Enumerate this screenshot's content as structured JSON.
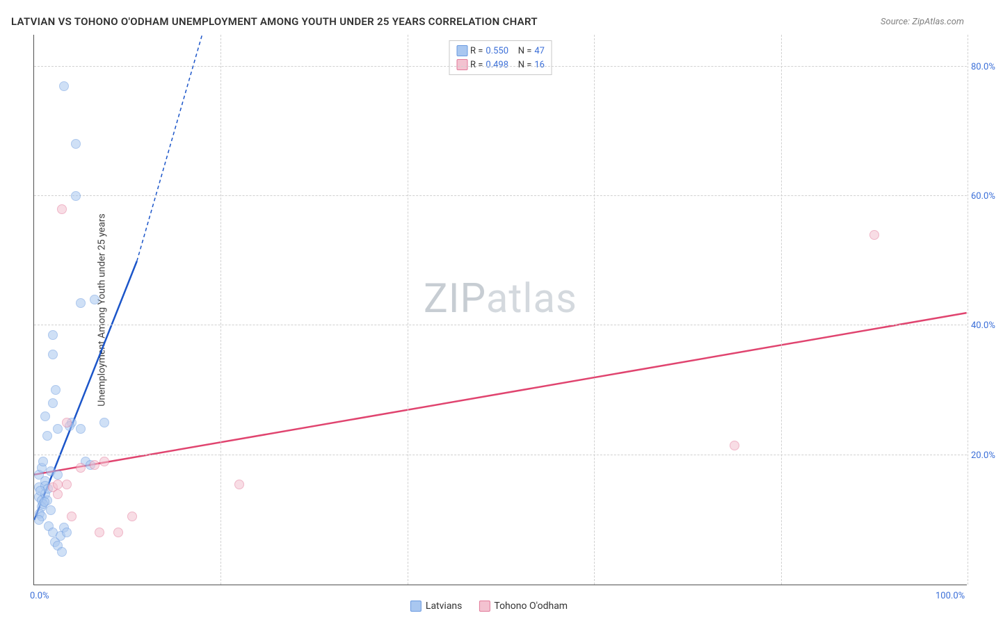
{
  "title": "LATVIAN VS TOHONO O'ODHAM UNEMPLOYMENT AMONG YOUTH UNDER 25 YEARS CORRELATION CHART",
  "source": "Source: ZipAtlas.com",
  "ylabel": "Unemployment Among Youth under 25 years",
  "watermark_a": "ZIP",
  "watermark_b": "atlas",
  "chart": {
    "type": "scatter",
    "xlim": [
      0,
      100
    ],
    "ylim": [
      0,
      85
    ],
    "yticks": [
      {
        "v": 20,
        "label": "20.0%"
      },
      {
        "v": 40,
        "label": "40.0%"
      },
      {
        "v": 60,
        "label": "60.0%"
      },
      {
        "v": 80,
        "label": "80.0%"
      }
    ],
    "xticks": [
      {
        "v": 0,
        "label": "0.0%"
      },
      {
        "v": 100,
        "label": "100.0%"
      }
    ],
    "xgrid": [
      20,
      40,
      60,
      80,
      100
    ],
    "background_color": "#ffffff",
    "grid_color": "#d0d0d0",
    "axis_label_color": "#3b6fd8",
    "title_color": "#303030",
    "point_radius": 7,
    "point_opacity": 0.55,
    "series": [
      {
        "name": "Latvians",
        "color_fill": "#a9c7f0",
        "color_stroke": "#6a9ae0",
        "trend_color": "#1b55c9",
        "R": "0.550",
        "N": "47",
        "trend": {
          "x1": 0,
          "y1": 10,
          "x2": 11,
          "y2": 50,
          "dash_x2": 18,
          "dash_y2": 85
        },
        "points": [
          [
            0.5,
            17
          ],
          [
            0.5,
            15
          ],
          [
            0.5,
            13.5
          ],
          [
            0.8,
            13
          ],
          [
            0.8,
            12
          ],
          [
            0.6,
            11
          ],
          [
            0.8,
            10.5
          ],
          [
            0.5,
            10
          ],
          [
            0.8,
            18
          ],
          [
            1.2,
            16
          ],
          [
            1.2,
            15.2
          ],
          [
            1.2,
            14
          ],
          [
            1.5,
            14.8
          ],
          [
            1.4,
            13
          ],
          [
            1.0,
            12.5
          ],
          [
            1.8,
            17.5
          ],
          [
            1.6,
            9
          ],
          [
            2.0,
            8
          ],
          [
            2.2,
            6.5
          ],
          [
            2.5,
            6
          ],
          [
            3.0,
            5
          ],
          [
            2.8,
            7.5
          ],
          [
            3.2,
            8.8
          ],
          [
            3.5,
            8
          ],
          [
            1.2,
            26
          ],
          [
            1.4,
            23
          ],
          [
            2.0,
            28
          ],
          [
            2.5,
            24
          ],
          [
            2.3,
            30
          ],
          [
            4,
            25
          ],
          [
            5,
            24
          ],
          [
            5.5,
            19
          ],
          [
            6,
            18.5
          ],
          [
            7.5,
            25
          ],
          [
            2.0,
            35.5
          ],
          [
            2.0,
            38.5
          ],
          [
            5,
            43.5
          ],
          [
            6.5,
            44
          ],
          [
            4.5,
            60
          ],
          [
            4.5,
            68
          ],
          [
            3.2,
            77
          ],
          [
            2.5,
            17
          ],
          [
            1.8,
            11.5
          ],
          [
            0.7,
            14.5
          ],
          [
            1.0,
            19
          ],
          [
            3.8,
            24.5
          ],
          [
            1.1,
            12.8
          ]
        ]
      },
      {
        "name": "Tohono O'odham",
        "color_fill": "#f3c2d0",
        "color_stroke": "#e27a9a",
        "trend_color": "#e0446f",
        "R": "0.498",
        "N": "16",
        "trend": {
          "x1": 0,
          "y1": 17,
          "x2": 100,
          "y2": 42
        },
        "points": [
          [
            2,
            15
          ],
          [
            2.5,
            15.5
          ],
          [
            3.5,
            15.5
          ],
          [
            4,
            10.5
          ],
          [
            5,
            18
          ],
          [
            6.5,
            18.5
          ],
          [
            7,
            8
          ],
          [
            7.5,
            19
          ],
          [
            10.5,
            10.5
          ],
          [
            9,
            8
          ],
          [
            2.5,
            14
          ],
          [
            3,
            58
          ],
          [
            22,
            15.5
          ],
          [
            75,
            21.5
          ],
          [
            90,
            54
          ],
          [
            3.5,
            25
          ]
        ]
      }
    ]
  },
  "legend_bottom": [
    {
      "key": 0,
      "label": "Latvians"
    },
    {
      "key": 1,
      "label": "Tohono O'odham"
    }
  ]
}
